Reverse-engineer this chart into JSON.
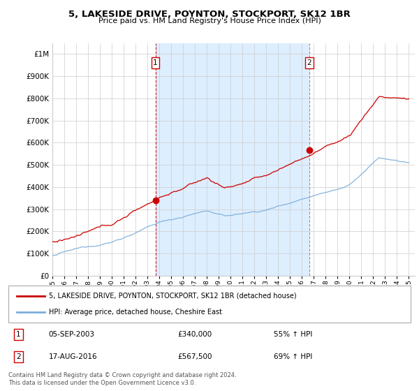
{
  "title": "5, LAKESIDE DRIVE, POYNTON, STOCKPORT, SK12 1BR",
  "subtitle": "Price paid vs. HM Land Registry's House Price Index (HPI)",
  "ytick_values": [
    0,
    100000,
    200000,
    300000,
    400000,
    500000,
    600000,
    700000,
    800000,
    900000,
    1000000
  ],
  "ylim": [
    0,
    1050000
  ],
  "xlim_start": 1995.0,
  "xlim_end": 2025.5,
  "hpi_color": "#7aaddb",
  "price_color": "#cc0000",
  "shade_color": "#ddeeff",
  "marker1_year": 2003.67,
  "marker1_price": 340000,
  "marker2_year": 2016.62,
  "marker2_price": 567500,
  "marker1_date": "05-SEP-2003",
  "marker1_amount": "£340,000",
  "marker1_pct": "55% ↑ HPI",
  "marker2_date": "17-AUG-2016",
  "marker2_amount": "£567,500",
  "marker2_pct": "69% ↑ HPI",
  "legend_property": "5, LAKESIDE DRIVE, POYNTON, STOCKPORT, SK12 1BR (detached house)",
  "legend_hpi": "HPI: Average price, detached house, Cheshire East",
  "footer": "Contains HM Land Registry data © Crown copyright and database right 2024.\nThis data is licensed under the Open Government Licence v3.0.",
  "xticks": [
    1995,
    1996,
    1997,
    1998,
    1999,
    2000,
    2001,
    2002,
    2003,
    2004,
    2005,
    2006,
    2007,
    2008,
    2009,
    2010,
    2011,
    2012,
    2013,
    2014,
    2015,
    2016,
    2017,
    2018,
    2019,
    2020,
    2021,
    2022,
    2023,
    2024,
    2025
  ]
}
